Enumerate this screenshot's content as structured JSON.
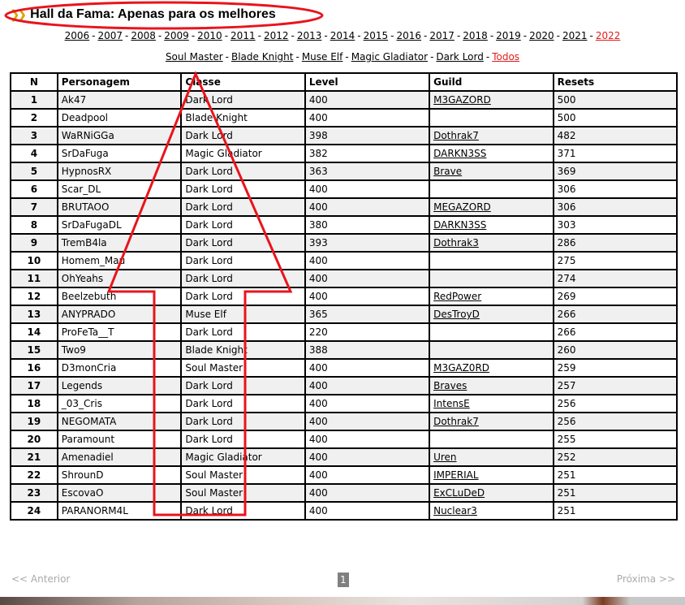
{
  "header": {
    "title": "Hall da Fama: Apenas para os melhores",
    "icon": "double-chevron-icon"
  },
  "years": {
    "items": [
      "2006",
      "2007",
      "2008",
      "2009",
      "2010",
      "2011",
      "2012",
      "2013",
      "2014",
      "2015",
      "2016",
      "2017",
      "2018",
      "2019",
      "2020",
      "2021",
      "2022"
    ],
    "active": "2022"
  },
  "classes": {
    "items": [
      "Soul Master",
      "Blade Knight",
      "Muse Elf",
      "Magic Gladiator",
      "Dark Lord",
      "Todos"
    ],
    "active": "Todos"
  },
  "table": {
    "columns": [
      "N",
      "Personagem",
      "Classe",
      "Level",
      "Guild",
      "Resets"
    ],
    "rows": [
      [
        "1",
        "Ak47",
        "Dark Lord",
        "400",
        "M3GAZORD",
        "500"
      ],
      [
        "2",
        "Deadpool",
        "Blade Knight",
        "400",
        "",
        "500"
      ],
      [
        "3",
        "WaRNiGGa",
        "Dark Lord",
        "398",
        "Dothrak7",
        "482"
      ],
      [
        "4",
        "SrDaFuga",
        "Magic Gladiator",
        "382",
        "DARKN3SS",
        "371"
      ],
      [
        "5",
        "HypnosRX",
        "Dark Lord",
        "363",
        "Brave",
        "369"
      ],
      [
        "6",
        "Scar_DL",
        "Dark Lord",
        "400",
        "",
        "306"
      ],
      [
        "7",
        "BRUTAOO",
        "Dark Lord",
        "400",
        "MEGAZORD",
        "306"
      ],
      [
        "8",
        "SrDaFugaDL",
        "Dark Lord",
        "380",
        "DARKN3SS",
        "303"
      ],
      [
        "9",
        "TremB4la",
        "Dark Lord",
        "393",
        "Dothrak3",
        "286"
      ],
      [
        "10",
        "Homem_Mau",
        "Dark Lord",
        "400",
        "",
        "275"
      ],
      [
        "11",
        "OhYeahs",
        "Dark Lord",
        "400",
        "",
        "274"
      ],
      [
        "12",
        "Beelzebuth",
        "Dark Lord",
        "400",
        "RedPower",
        "269"
      ],
      [
        "13",
        "ANYPRADO",
        "Muse Elf",
        "365",
        "DesTroyD",
        "266"
      ],
      [
        "14",
        "ProFeTa__T",
        "Dark Lord",
        "220",
        "",
        "266"
      ],
      [
        "15",
        "Two9",
        "Blade Knight",
        "388",
        "",
        "260"
      ],
      [
        "16",
        "D3monCria",
        "Soul Master",
        "400",
        "M3GAZ0RD",
        "259"
      ],
      [
        "17",
        "Legends",
        "Dark Lord",
        "400",
        "Braves",
        "257"
      ],
      [
        "18",
        "_03_Cris",
        "Dark Lord",
        "400",
        "IntensE",
        "256"
      ],
      [
        "19",
        "NEGOMATA",
        "Dark Lord",
        "400",
        "Dothrak7",
        "256"
      ],
      [
        "20",
        "Paramount",
        "Dark Lord",
        "400",
        "",
        "255"
      ],
      [
        "21",
        "Amenadiel",
        "Magic Gladiator",
        "400",
        "Uren",
        "252"
      ],
      [
        "22",
        "ShrounD",
        "Soul Master",
        "400",
        "IMPERIAL",
        "251"
      ],
      [
        "23",
        "EscovaO",
        "Soul Master",
        "400",
        "ExCLuDeD",
        "251"
      ],
      [
        "24",
        "PARANORM4L",
        "Dark Lord",
        "400",
        "Nuclear3",
        "251"
      ]
    ]
  },
  "pager": {
    "prev": "<< Anterior",
    "current": "1",
    "next": "Próxima >>"
  },
  "colors": {
    "annotation": "#e8141c",
    "active_link": "#e01b1b",
    "chevron": "#d9a400",
    "row_alt": "#f0f0f0"
  }
}
